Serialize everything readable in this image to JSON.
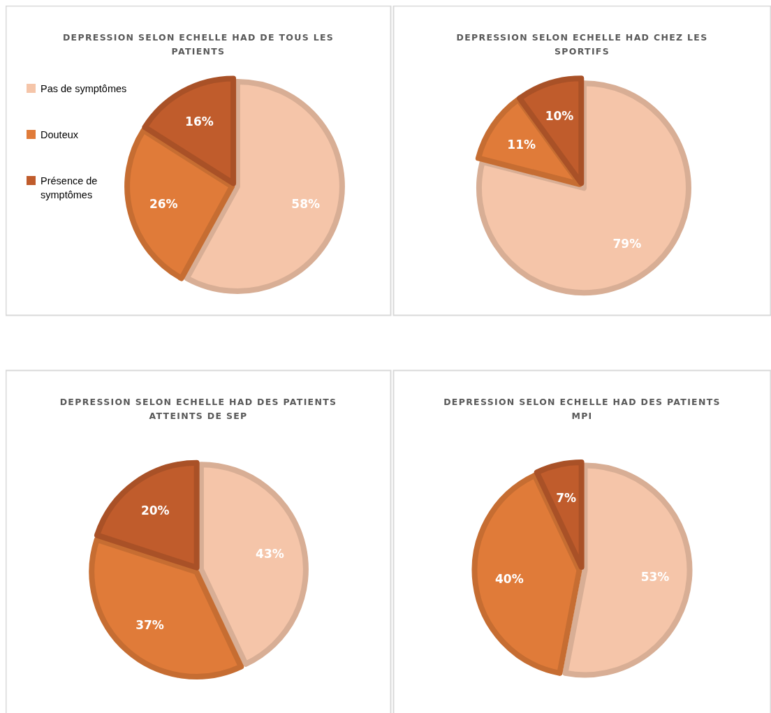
{
  "chart_data": [
    {
      "type": "pie",
      "title": "DEPRESSION SELON ECHELLE HAD DE TOUS LES PATIENTS",
      "categories": [
        "Pas de symptômes",
        "Douteux",
        "Présence de symptômes"
      ],
      "values": [
        58,
        26,
        16
      ],
      "value_labels": [
        "58%",
        "26%",
        "16%"
      ],
      "colors": [
        "#f5c5a9",
        "#e07b39",
        "#c05c2c"
      ],
      "legend": "left"
    },
    {
      "type": "pie",
      "title": "DEPRESSION SELON ECHELLE HAD CHEZ LES SPORTIFS",
      "categories": [
        null,
        null,
        null
      ],
      "values": [
        79,
        11,
        10
      ],
      "value_labels": [
        "79%",
        "11%",
        "10%"
      ],
      "colors": [
        "#f5c5a9",
        "#e07b39",
        "#c05c2c"
      ]
    },
    {
      "type": "pie",
      "title": "DEPRESSION SELON ECHELLE HAD DES PATIENTS ATTEINTS DE SEP",
      "categories": [
        null,
        null,
        null
      ],
      "values": [
        43,
        37,
        20
      ],
      "value_labels": [
        "43%",
        "37%",
        "20%"
      ],
      "colors": [
        "#f5c5a9",
        "#e07b39",
        "#c05c2c"
      ]
    },
    {
      "type": "pie",
      "title": "DEPRESSION SELON ECHELLE HAD DES PATIENTS MPI",
      "categories": [
        null,
        null,
        null
      ],
      "values": [
        53,
        40,
        7
      ],
      "value_labels": [
        "53%",
        "40%",
        "7%"
      ],
      "colors": [
        "#f5c5a9",
        "#e07b39",
        "#c05c2c"
      ]
    }
  ]
}
